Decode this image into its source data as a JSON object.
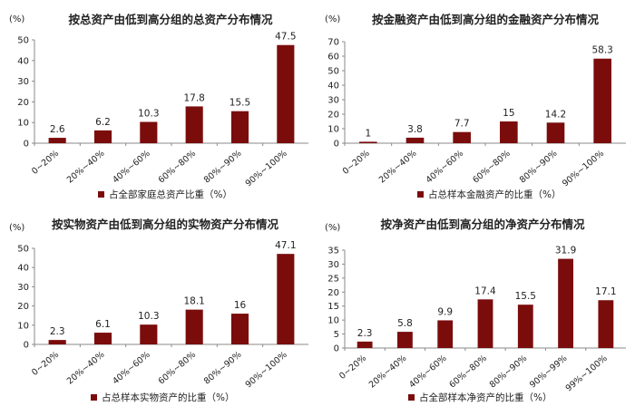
{
  "colors": {
    "bar": "#7B0C0C",
    "axis": "#8a8a8a",
    "text": "#222222"
  },
  "chart_data": [
    {
      "type": "bar",
      "title": "按总资产由低到高分组的总资产分布情况",
      "ylabel": "(%)",
      "ylim": [
        0,
        50
      ],
      "yticks": [
        0,
        10,
        20,
        30,
        40,
        50
      ],
      "categories": [
        "0~20%",
        "20%~40%",
        "40%~60%",
        "60%~80%",
        "80%~90%",
        "90%~100%"
      ],
      "series": [
        {
          "name": "占全部家庭总资产比重（%）",
          "values": [
            2.6,
            6.2,
            10.3,
            17.8,
            15.5,
            47.5
          ]
        }
      ],
      "data_labels": [
        "2.6",
        "6.2",
        "10.3",
        "17.8",
        "15.5",
        "47.5"
      ],
      "legend": "bottom"
    },
    {
      "type": "bar",
      "title": "按金融资产由低到高分组的金融资产分布情况",
      "ylabel": "(%)",
      "ylim": [
        0,
        70
      ],
      "yticks": [
        0,
        10,
        20,
        30,
        40,
        50,
        60,
        70
      ],
      "categories": [
        "0~20%",
        "20%~40%",
        "40%~60%",
        "60%~80%",
        "80%~90%",
        "90%~100%"
      ],
      "series": [
        {
          "name": "占总样本金融资产的比重（%）",
          "values": [
            1,
            3.8,
            7.7,
            15,
            14.2,
            58.3
          ]
        }
      ],
      "data_labels": [
        "1",
        "3.8",
        "7.7",
        "15",
        "14.2",
        "58.3"
      ],
      "legend": "bottom"
    },
    {
      "type": "bar",
      "title": "按实物资产由低到高分组的实物资产分布情况",
      "ylabel": "(%)",
      "ylim": [
        0,
        50
      ],
      "yticks": [
        0,
        10,
        20,
        30,
        40,
        50
      ],
      "categories": [
        "0~20%",
        "20%~40%",
        "40%~60%",
        "60%~80%",
        "80%~90%",
        "90%~100%"
      ],
      "series": [
        {
          "name": "占总样本实物资产的比重（%）",
          "values": [
            2.3,
            6.1,
            10.3,
            18.1,
            16,
            47.1
          ]
        }
      ],
      "data_labels": [
        "2.3",
        "6.1",
        "10.3",
        "18.1",
        "16",
        "47.1"
      ],
      "legend": "bottom"
    },
    {
      "type": "bar",
      "title": "按净资产由低到高分组的净资产分布情况",
      "ylabel": "(%)",
      "ylim": [
        0,
        35
      ],
      "yticks": [
        0,
        5,
        10,
        15,
        20,
        25,
        30,
        35
      ],
      "categories": [
        "0~20%",
        "20%~40%",
        "40%~60%",
        "60%~80%",
        "80%~90%",
        "90%~99%",
        "99%~100%"
      ],
      "series": [
        {
          "name": "占全部样本净资产的比重（%）",
          "values": [
            2.3,
            5.8,
            9.9,
            17.4,
            15.5,
            31.9,
            17.1
          ]
        }
      ],
      "data_labels": [
        "2.3",
        "5.8",
        "9.9",
        "17.4",
        "15.5",
        "31.9",
        "17.1"
      ],
      "legend": "bottom"
    }
  ]
}
